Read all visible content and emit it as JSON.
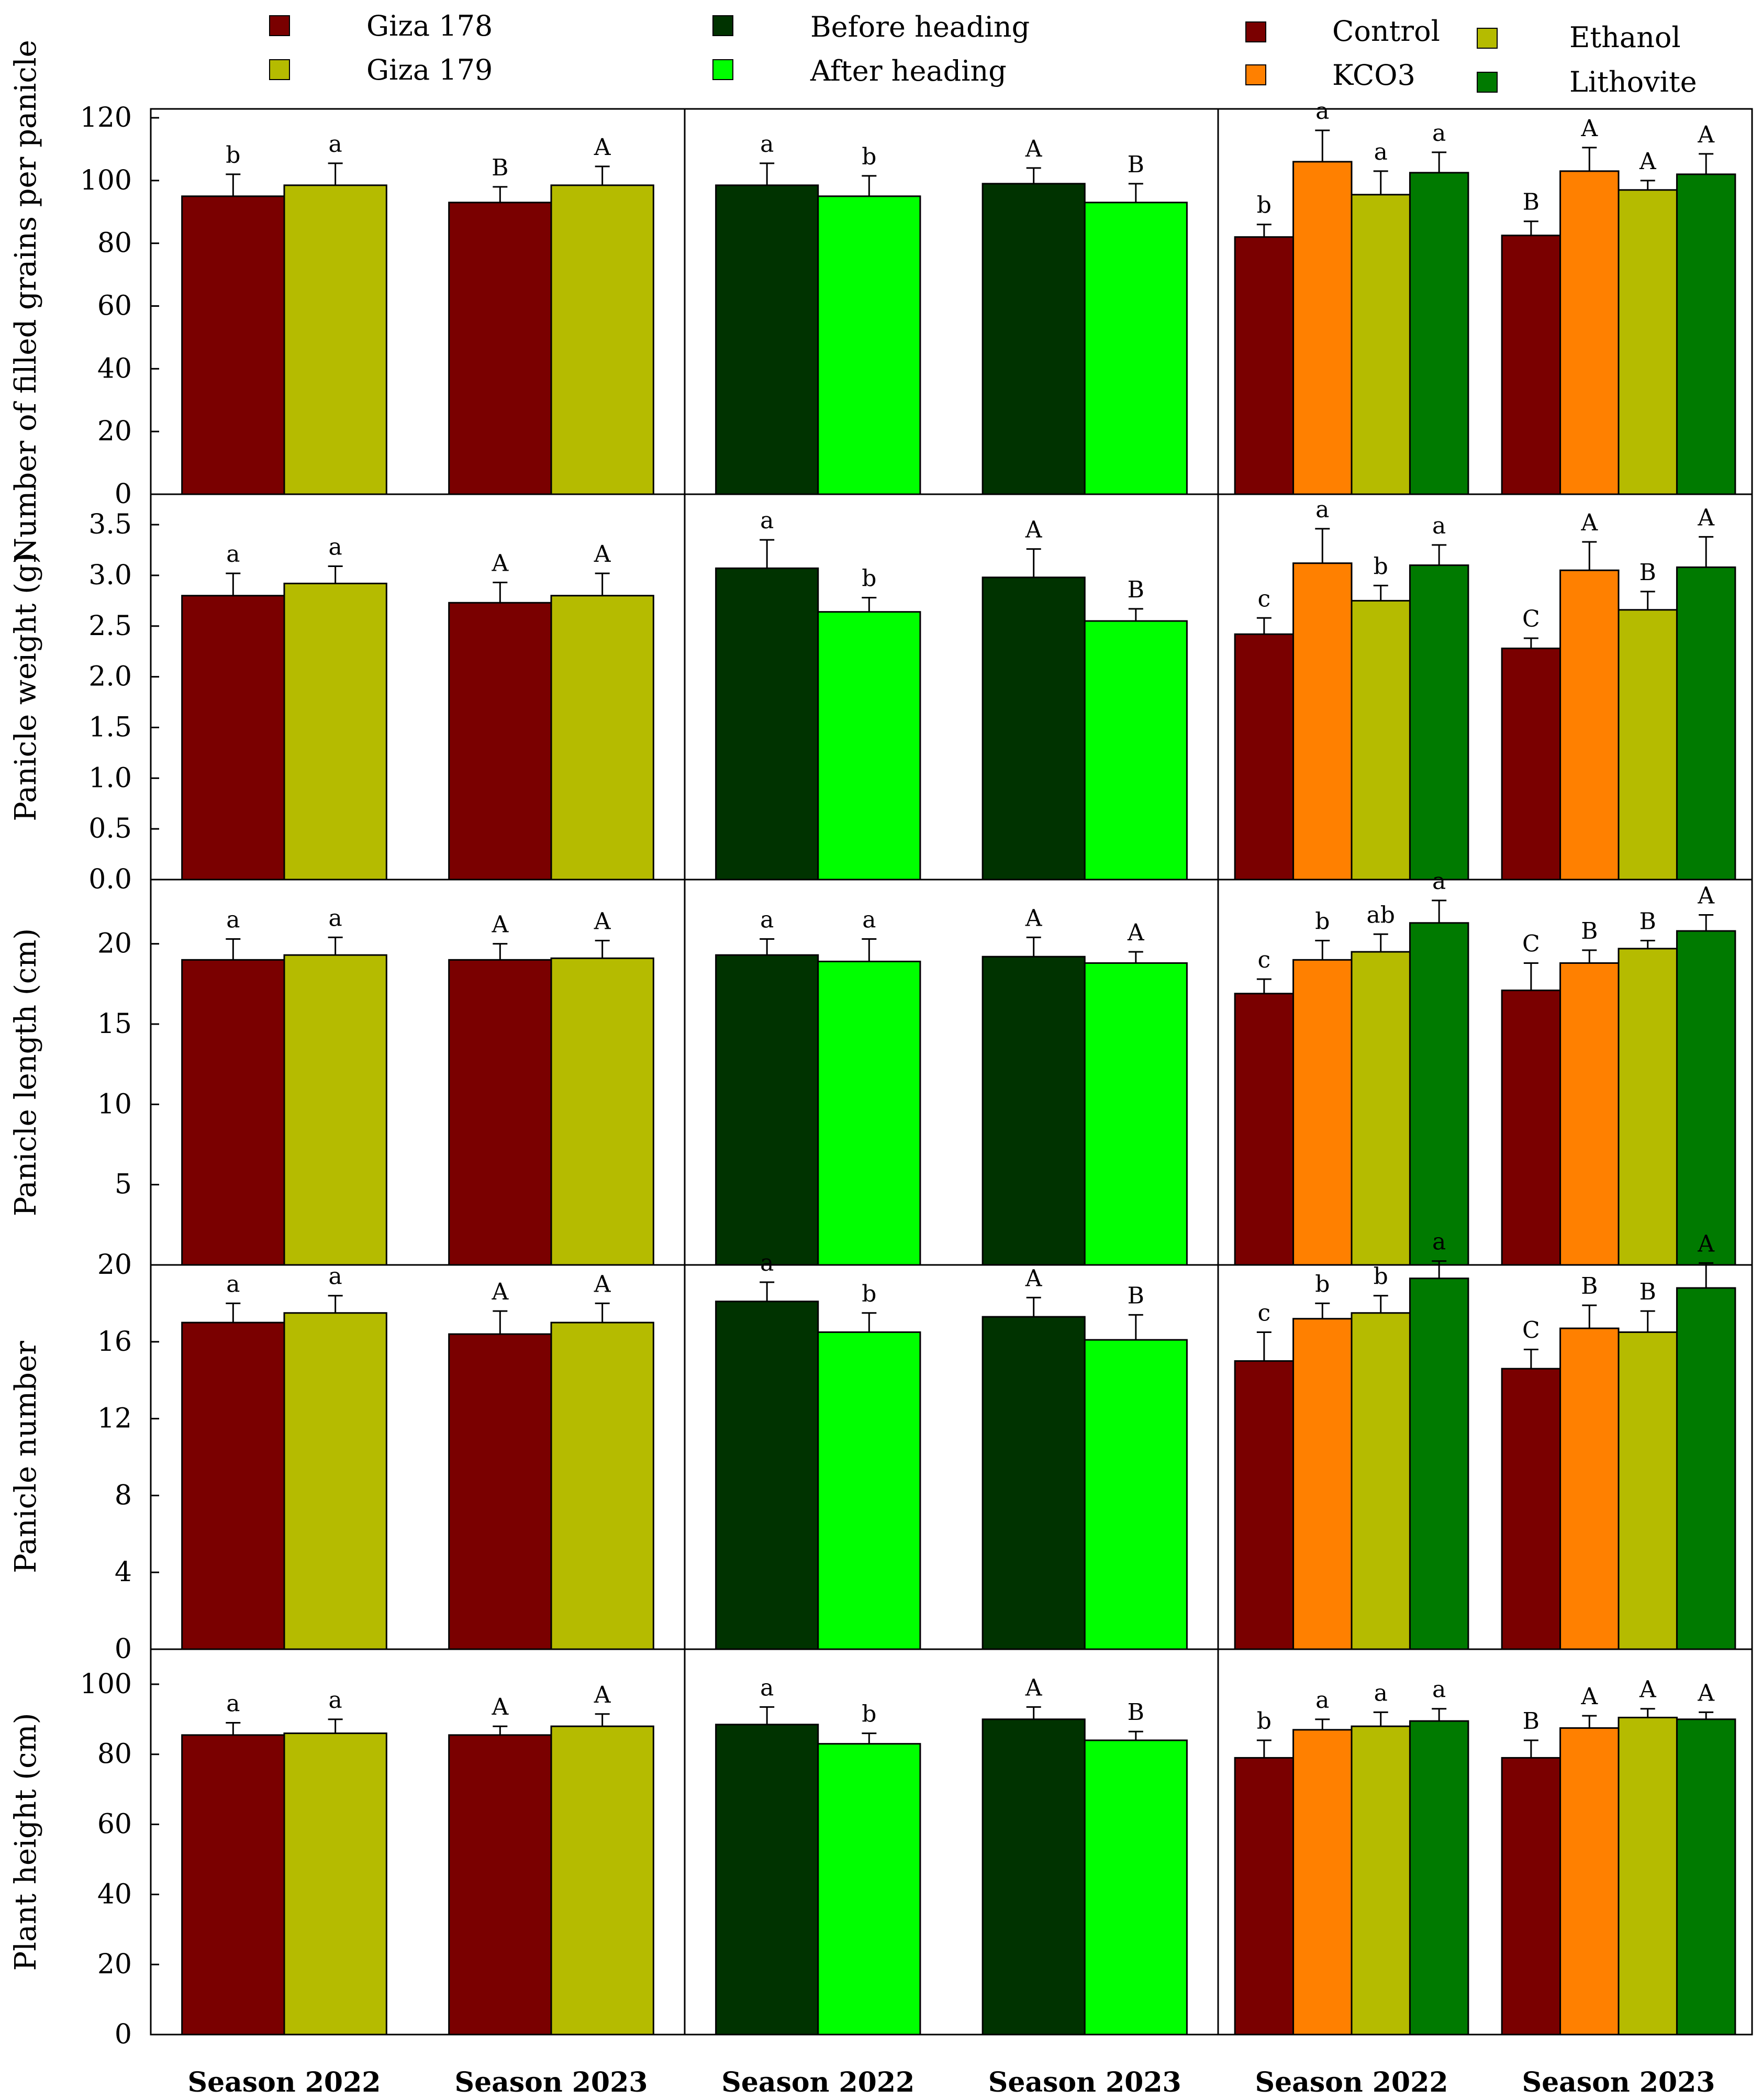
{
  "colors": {
    "giza178": "#7a0000",
    "giza179": "#b5bb00",
    "before": "#003300",
    "after": "#00ff00",
    "control": "#7a0000",
    "kco3": "#ff8000",
    "ethanol": "#b5bb00",
    "lithovite": "#007a00"
  },
  "legend": {
    "group1": [
      {
        "label": "Giza 178",
        "color": "#7a0000"
      },
      {
        "label": "Giza 179",
        "color": "#b5bb00"
      }
    ],
    "group2": [
      {
        "label": "Before heading",
        "color": "#003300"
      },
      {
        "label": "After heading",
        "color": "#00ff00"
      }
    ],
    "group3": [
      {
        "label": "Control",
        "color": "#7a0000"
      },
      {
        "label": "KCO3",
        "color": "#ff8000"
      },
      {
        "label": "Ethanol",
        "color": "#b5bb00"
      },
      {
        "label": "Lithovite",
        "color": "#007a00"
      }
    ]
  },
  "chart_data": [
    {
      "type": "bar",
      "row": "filled-grains",
      "ylabel": "Number of filled grains per panicle",
      "ylim": [
        0,
        120
      ],
      "yticks": [
        "0",
        "20",
        "40",
        "60",
        "80",
        "100",
        "120"
      ],
      "categories": [
        "Season 2022",
        "Season 2023"
      ],
      "panels": [
        {
          "name": "cultivar",
          "series": [
            {
              "name": "Giza 178",
              "values": [
                95,
                93
              ],
              "errors": [
                7,
                5
              ],
              "letters": [
                "b",
                "B"
              ]
            },
            {
              "name": "Giza 179",
              "values": [
                98.5,
                98.5
              ],
              "errors": [
                7,
                6
              ],
              "letters": [
                "a",
                "A"
              ]
            }
          ]
        },
        {
          "name": "timing",
          "series": [
            {
              "name": "Before heading",
              "values": [
                98.5,
                99
              ],
              "errors": [
                7,
                5
              ],
              "letters": [
                "a",
                "A"
              ]
            },
            {
              "name": "After heading",
              "values": [
                95,
                93
              ],
              "errors": [
                6.5,
                6
              ],
              "letters": [
                "b",
                "B"
              ]
            }
          ]
        },
        {
          "name": "treatment",
          "series": [
            {
              "name": "Control",
              "values": [
                82,
                82.5
              ],
              "errors": [
                4,
                4.5
              ],
              "letters": [
                "b",
                "B"
              ]
            },
            {
              "name": "KCO3",
              "values": [
                106,
                103
              ],
              "errors": [
                10,
                7.5
              ],
              "letters": [
                "a",
                "A"
              ]
            },
            {
              "name": "Ethanol",
              "values": [
                95.5,
                97
              ],
              "errors": [
                7.5,
                3
              ],
              "letters": [
                "a",
                "A"
              ]
            },
            {
              "name": "Lithovite",
              "values": [
                102.5,
                102
              ],
              "errors": [
                6.5,
                6.5
              ],
              "letters": [
                "a",
                "A"
              ]
            }
          ]
        }
      ]
    },
    {
      "type": "bar",
      "row": "panicle-weight",
      "ylabel": "Panicle weight (g)",
      "ylim": [
        0,
        3.8
      ],
      "yticks": [
        "0.0",
        "0.5",
        "1.0",
        "1.5",
        "2.0",
        "2.5",
        "3.0",
        "3.5"
      ],
      "categories": [
        "Season 2022",
        "Season 2023"
      ],
      "panels": [
        {
          "name": "cultivar",
          "series": [
            {
              "name": "Giza 178",
              "values": [
                2.8,
                2.73
              ],
              "errors": [
                0.22,
                0.2
              ],
              "letters": [
                "a",
                "A"
              ]
            },
            {
              "name": "Giza 179",
              "values": [
                2.92,
                2.8
              ],
              "errors": [
                0.17,
                0.22
              ],
              "letters": [
                "a",
                "A"
              ]
            }
          ]
        },
        {
          "name": "timing",
          "series": [
            {
              "name": "Before heading",
              "values": [
                3.07,
                2.98
              ],
              "errors": [
                0.28,
                0.28
              ],
              "letters": [
                "a",
                "A"
              ]
            },
            {
              "name": "After heading",
              "values": [
                2.64,
                2.55
              ],
              "errors": [
                0.14,
                0.12
              ],
              "letters": [
                "b",
                "B"
              ]
            }
          ]
        },
        {
          "name": "treatment",
          "series": [
            {
              "name": "Control",
              "values": [
                2.42,
                2.28
              ],
              "errors": [
                0.16,
                0.1
              ],
              "letters": [
                "c",
                "C"
              ]
            },
            {
              "name": "KCO3",
              "values": [
                3.12,
                3.05
              ],
              "errors": [
                0.34,
                0.28
              ],
              "letters": [
                "a",
                "A"
              ]
            },
            {
              "name": "Ethanol",
              "values": [
                2.75,
                2.66
              ],
              "errors": [
                0.15,
                0.18
              ],
              "letters": [
                "b",
                "B"
              ]
            },
            {
              "name": "Lithovite",
              "values": [
                3.1,
                3.08
              ],
              "errors": [
                0.2,
                0.3
              ],
              "letters": [
                "a",
                "A"
              ]
            }
          ]
        }
      ]
    },
    {
      "type": "bar",
      "row": "panicle-length",
      "ylabel": "Panicle length (cm)",
      "ylim": [
        0,
        24
      ],
      "yticks": [
        "0",
        "5",
        "10",
        "15",
        "20"
      ],
      "categories": [
        "Season 2022",
        "Season 2023"
      ],
      "panels": [
        {
          "name": "cultivar",
          "series": [
            {
              "name": "Giza 178",
              "values": [
                19,
                19
              ],
              "errors": [
                1.3,
                1
              ],
              "letters": [
                "a",
                "A"
              ]
            },
            {
              "name": "Giza 179",
              "values": [
                19.3,
                19.1
              ],
              "errors": [
                1.1,
                1.1
              ],
              "letters": [
                "a",
                "A"
              ]
            }
          ]
        },
        {
          "name": "timing",
          "series": [
            {
              "name": "Before heading",
              "values": [
                19.3,
                19.2
              ],
              "errors": [
                1,
                1.2
              ],
              "letters": [
                "a",
                "A"
              ]
            },
            {
              "name": "After heading",
              "values": [
                18.9,
                18.8
              ],
              "errors": [
                1.4,
                0.7
              ],
              "letters": [
                "a",
                "A"
              ]
            }
          ]
        },
        {
          "name": "treatment",
          "series": [
            {
              "name": "Control",
              "values": [
                16.9,
                17.1
              ],
              "errors": [
                0.9,
                1.7
              ],
              "letters": [
                "c",
                "C"
              ]
            },
            {
              "name": "KCO3",
              "values": [
                19,
                18.8
              ],
              "errors": [
                1.2,
                0.8
              ],
              "letters": [
                "b",
                "B"
              ]
            },
            {
              "name": "Ethanol",
              "values": [
                19.5,
                19.7
              ],
              "errors": [
                1.1,
                0.5
              ],
              "letters": [
                "ab",
                "B"
              ]
            },
            {
              "name": "Lithovite",
              "values": [
                21.3,
                20.8
              ],
              "errors": [
                1.4,
                1
              ],
              "letters": [
                "a",
                "A"
              ]
            }
          ]
        }
      ]
    },
    {
      "type": "bar",
      "row": "panicle-number",
      "ylabel": "Panicle number",
      "ylim": [
        0,
        20
      ],
      "yticks": [
        "0",
        "4",
        "8",
        "12",
        "16",
        "20"
      ],
      "categories": [
        "Season 2022",
        "Season 2023"
      ],
      "panels": [
        {
          "name": "cultivar",
          "series": [
            {
              "name": "Giza 178",
              "values": [
                17,
                16.4
              ],
              "errors": [
                1,
                1.2
              ],
              "letters": [
                "a",
                "A"
              ]
            },
            {
              "name": "Giza 179",
              "values": [
                17.5,
                17
              ],
              "errors": [
                0.9,
                1
              ],
              "letters": [
                "a",
                "A"
              ]
            }
          ]
        },
        {
          "name": "timing",
          "series": [
            {
              "name": "Before heading",
              "values": [
                18.1,
                17.3
              ],
              "errors": [
                1,
                1
              ],
              "letters": [
                "a",
                "A"
              ]
            },
            {
              "name": "After heading",
              "values": [
                16.5,
                16.1
              ],
              "errors": [
                1,
                1.3
              ],
              "letters": [
                "b",
                "B"
              ]
            }
          ]
        },
        {
          "name": "treatment",
          "series": [
            {
              "name": "Control",
              "values": [
                15,
                14.6
              ],
              "errors": [
                1.5,
                1
              ],
              "letters": [
                "c",
                "C"
              ]
            },
            {
              "name": "KCO3",
              "values": [
                17.2,
                16.7
              ],
              "errors": [
                0.8,
                1.2
              ],
              "letters": [
                "b",
                "B"
              ]
            },
            {
              "name": "Ethanol",
              "values": [
                17.5,
                16.5
              ],
              "errors": [
                0.9,
                1.1
              ],
              "letters": [
                "b",
                "B"
              ]
            },
            {
              "name": "Lithovite",
              "values": [
                19.3,
                18.8
              ],
              "errors": [
                0.9,
                1.3
              ],
              "letters": [
                "a",
                "A"
              ]
            }
          ]
        }
      ]
    },
    {
      "type": "bar",
      "row": "plant-height",
      "ylabel": "Plant height (cm)",
      "ylim": [
        0,
        110
      ],
      "yticks": [
        "0",
        "20",
        "40",
        "60",
        "80",
        "100"
      ],
      "categories": [
        "Season 2022",
        "Season 2023"
      ],
      "panels": [
        {
          "name": "cultivar",
          "series": [
            {
              "name": "Giza 178",
              "values": [
                85.5,
                85.5
              ],
              "errors": [
                3.5,
                2.5
              ],
              "letters": [
                "a",
                "A"
              ]
            },
            {
              "name": "Giza 179",
              "values": [
                86,
                88
              ],
              "errors": [
                4,
                3.5
              ],
              "letters": [
                "a",
                "A"
              ]
            }
          ]
        },
        {
          "name": "timing",
          "series": [
            {
              "name": "Before heading",
              "values": [
                88.5,
                90
              ],
              "errors": [
                5,
                3.5
              ],
              "letters": [
                "a",
                "A"
              ]
            },
            {
              "name": "After heading",
              "values": [
                83,
                84
              ],
              "errors": [
                3,
                2.5
              ],
              "letters": [
                "b",
                "B"
              ]
            }
          ]
        },
        {
          "name": "treatment",
          "series": [
            {
              "name": "Control",
              "values": [
                79,
                79
              ],
              "errors": [
                5,
                5
              ],
              "letters": [
                "b",
                "B"
              ]
            },
            {
              "name": "KCO3",
              "values": [
                87,
                87.5
              ],
              "errors": [
                3,
                3.5
              ],
              "letters": [
                "a",
                "A"
              ]
            },
            {
              "name": "Ethanol",
              "values": [
                88,
                90.5
              ],
              "errors": [
                4,
                2.5
              ],
              "letters": [
                "a",
                "A"
              ]
            },
            {
              "name": "Lithovite",
              "values": [
                89.5,
                90
              ],
              "errors": [
                3.5,
                2
              ],
              "letters": [
                "a",
                "A"
              ]
            }
          ]
        }
      ]
    }
  ]
}
